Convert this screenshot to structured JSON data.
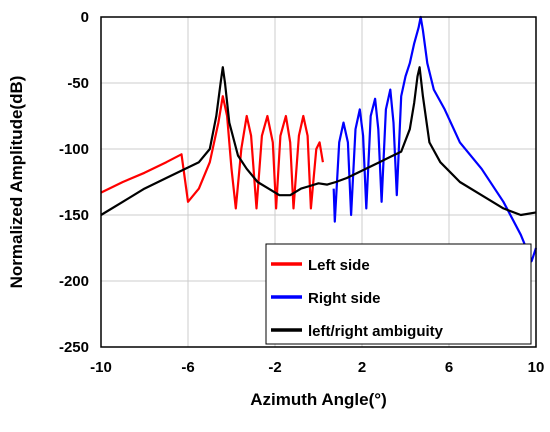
{
  "chart_data": {
    "type": "line",
    "title": "",
    "xlabel": "Azimuth Angle(°)",
    "ylabel": "Normalized Amplitude(dB)",
    "xlim": [
      -10,
      10
    ],
    "ylim": [
      -250,
      0
    ],
    "xticks": [
      "-10",
      "-6",
      "-2",
      "2",
      "6",
      "10"
    ],
    "xtick_values": [
      -10,
      -6,
      -2,
      2,
      6,
      10
    ],
    "yticks": [
      "0",
      "-50",
      "-100",
      "-150",
      "-200",
      "-250"
    ],
    "ytick_values": [
      0,
      -50,
      -100,
      -150,
      -200,
      -250
    ],
    "grid": true,
    "legend_position": "bottom-right",
    "series": [
      {
        "name": "Left side",
        "color": "#ff0000",
        "points": [
          [
            -10,
            -133
          ],
          [
            -9,
            -125
          ],
          [
            -8,
            -118
          ],
          [
            -7,
            -110
          ],
          [
            -6.3,
            -104
          ],
          [
            -6.0,
            -140
          ],
          [
            -5.5,
            -130
          ],
          [
            -5.0,
            -110
          ],
          [
            -4.6,
            -80
          ],
          [
            -4.4,
            -60
          ],
          [
            -4.2,
            -75
          ],
          [
            -4.0,
            -115
          ],
          [
            -3.8,
            -145
          ],
          [
            -3.55,
            -100
          ],
          [
            -3.3,
            -75
          ],
          [
            -3.1,
            -90
          ],
          [
            -2.85,
            -145
          ],
          [
            -2.6,
            -90
          ],
          [
            -2.35,
            -75
          ],
          [
            -2.1,
            -95
          ],
          [
            -1.95,
            -145
          ],
          [
            -1.75,
            -90
          ],
          [
            -1.5,
            -75
          ],
          [
            -1.3,
            -95
          ],
          [
            -1.15,
            -145
          ],
          [
            -0.9,
            -90
          ],
          [
            -0.7,
            -75
          ],
          [
            -0.5,
            -90
          ],
          [
            -0.35,
            -145
          ],
          [
            -0.1,
            -100
          ],
          [
            0.05,
            -95
          ],
          [
            0.2,
            -110
          ]
        ]
      },
      {
        "name": "Right side",
        "color": "#0000ff",
        "points": [
          [
            0.7,
            -130
          ],
          [
            0.75,
            -155
          ],
          [
            0.95,
            -95
          ],
          [
            1.15,
            -80
          ],
          [
            1.35,
            -95
          ],
          [
            1.5,
            -150
          ],
          [
            1.7,
            -85
          ],
          [
            1.9,
            -70
          ],
          [
            2.05,
            -90
          ],
          [
            2.2,
            -145
          ],
          [
            2.4,
            -75
          ],
          [
            2.6,
            -62
          ],
          [
            2.75,
            -85
          ],
          [
            2.9,
            -140
          ],
          [
            3.1,
            -70
          ],
          [
            3.3,
            -55
          ],
          [
            3.45,
            -80
          ],
          [
            3.6,
            -135
          ],
          [
            3.8,
            -60
          ],
          [
            4.0,
            -45
          ],
          [
            4.2,
            -35
          ],
          [
            4.4,
            -20
          ],
          [
            4.6,
            -8
          ],
          [
            4.7,
            0
          ],
          [
            4.8,
            -10
          ],
          [
            5.0,
            -35
          ],
          [
            5.3,
            -55
          ],
          [
            5.8,
            -70
          ],
          [
            6.5,
            -95
          ],
          [
            7.5,
            -115
          ],
          [
            8.5,
            -140
          ],
          [
            9.3,
            -165
          ],
          [
            9.8,
            -185
          ],
          [
            10,
            -175
          ]
        ]
      },
      {
        "name": "left/right ambiguity",
        "color": "#000000",
        "points": [
          [
            -10,
            -150
          ],
          [
            -9,
            -140
          ],
          [
            -8,
            -130
          ],
          [
            -7,
            -122
          ],
          [
            -6,
            -114
          ],
          [
            -5.5,
            -110
          ],
          [
            -5,
            -100
          ],
          [
            -4.7,
            -75
          ],
          [
            -4.5,
            -50
          ],
          [
            -4.4,
            -38
          ],
          [
            -4.3,
            -50
          ],
          [
            -4.1,
            -80
          ],
          [
            -3.7,
            -105
          ],
          [
            -3.3,
            -115
          ],
          [
            -2.8,
            -125
          ],
          [
            -2.3,
            -130
          ],
          [
            -1.8,
            -135
          ],
          [
            -1.3,
            -135
          ],
          [
            -0.8,
            -130
          ],
          [
            -0.4,
            -128
          ],
          [
            0,
            -126
          ],
          [
            0.4,
            -127
          ],
          [
            0.8,
            -125
          ],
          [
            1.3,
            -122
          ],
          [
            1.8,
            -118
          ],
          [
            2.3,
            -114
          ],
          [
            2.8,
            -110
          ],
          [
            3.3,
            -106
          ],
          [
            3.8,
            -102
          ],
          [
            4.2,
            -85
          ],
          [
            4.4,
            -65
          ],
          [
            4.55,
            -45
          ],
          [
            4.65,
            -38
          ],
          [
            4.8,
            -60
          ],
          [
            5.1,
            -95
          ],
          [
            5.6,
            -110
          ],
          [
            6.5,
            -125
          ],
          [
            7.5,
            -135
          ],
          [
            8.5,
            -145
          ],
          [
            9.3,
            -150
          ],
          [
            10,
            -148
          ]
        ]
      }
    ]
  }
}
